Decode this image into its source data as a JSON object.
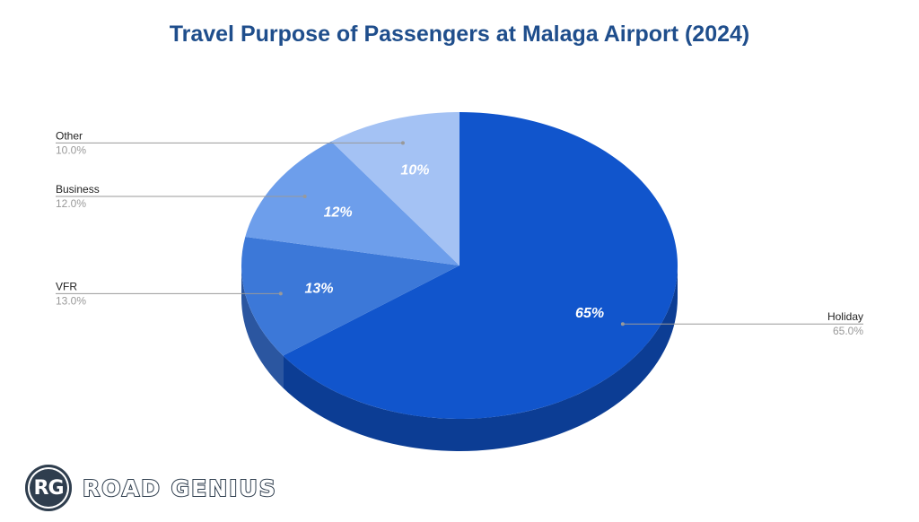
{
  "chart_data": {
    "type": "pie",
    "title": "Travel Purpose of Passengers at Malaga Airport (2024)",
    "slices": [
      {
        "label": "Holiday",
        "value": 65.0,
        "display": "65%",
        "legend_value": "65.0%",
        "color": "#1155cc",
        "side_color": "#0c3d94"
      },
      {
        "label": "VFR",
        "value": 13.0,
        "display": "13%",
        "legend_value": "13.0%",
        "color": "#3c78d8",
        "side_color": "#2b56a0"
      },
      {
        "label": "Business",
        "value": 12.0,
        "display": "12%",
        "legend_value": "12.0%",
        "color": "#6d9eeb",
        "side_color": "#4f74b0"
      },
      {
        "label": "Other",
        "value": 10.0,
        "display": "10%",
        "legend_value": "10.0%",
        "color": "#a4c2f4",
        "side_color": "#7a92bb"
      }
    ],
    "label_style": "leader-lines",
    "chart_style": "3d"
  },
  "logo": {
    "monogram": "RG",
    "text": "ROAD GENIUS"
  }
}
